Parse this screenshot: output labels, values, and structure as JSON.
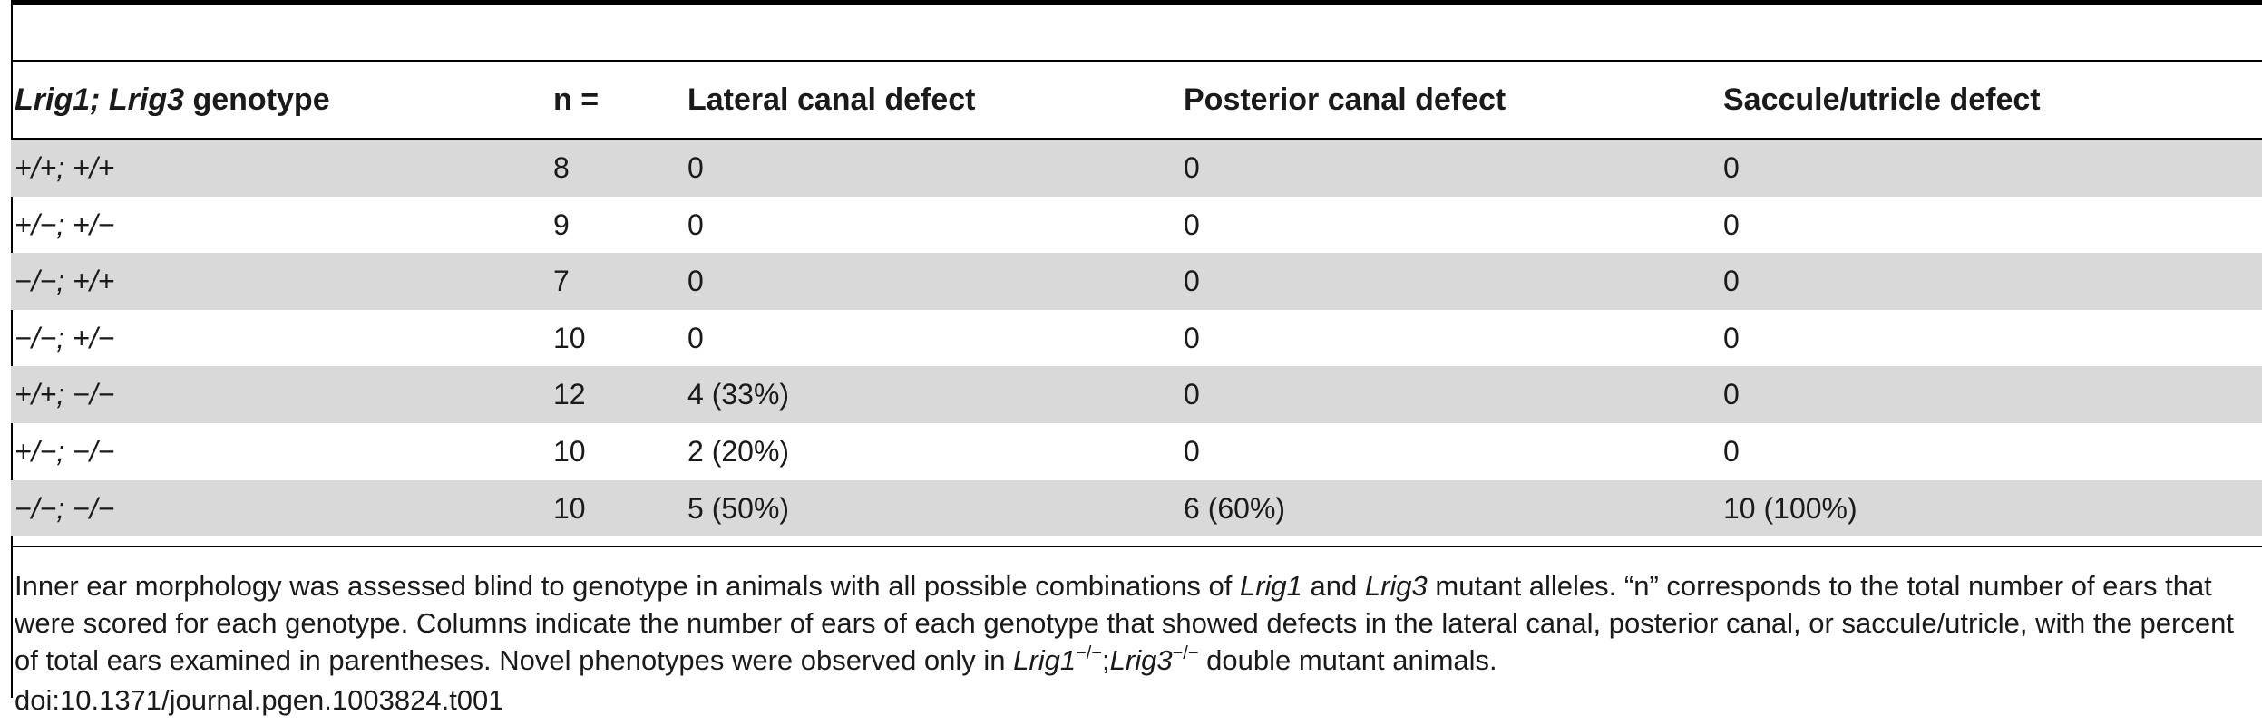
{
  "table": {
    "header": {
      "genotype_gene_a": "Lrig1; Lrig3",
      "genotype_suffix": " genotype",
      "n": "n =",
      "lateral": "Lateral canal defect",
      "posterior": "Posterior canal defect",
      "saccule": "Saccule/utricle defect"
    },
    "rows": [
      {
        "genotype": "+/+; +/+",
        "n": "8",
        "lateral": "0",
        "posterior": "0",
        "saccule": "0"
      },
      {
        "genotype": "+/−; +/−",
        "n": "9",
        "lateral": "0",
        "posterior": "0",
        "saccule": "0"
      },
      {
        "genotype": "−/−; +/+",
        "n": "7",
        "lateral": "0",
        "posterior": "0",
        "saccule": "0"
      },
      {
        "genotype": "−/−; +/−",
        "n": "10",
        "lateral": "0",
        "posterior": "0",
        "saccule": "0"
      },
      {
        "genotype": "+/+; −/−",
        "n": "12",
        "lateral": "4 (33%)",
        "posterior": "0",
        "saccule": "0"
      },
      {
        "genotype": "+/−; −/−",
        "n": "10",
        "lateral": "2 (20%)",
        "posterior": "0",
        "saccule": "0"
      },
      {
        "genotype": "−/−; −/−",
        "n": "10",
        "lateral": "5 (50%)",
        "posterior": "6 (60%)",
        "saccule": "10 (100%)"
      }
    ]
  },
  "footnote": {
    "t1": "Inner ear morphology was assessed blind to genotype in animals with all possible combinations of ",
    "g1": "Lrig1",
    "t2": " and ",
    "g2": "Lrig3",
    "t3": " mutant alleles. “n” corresponds to the total number of ears that were scored for each genotype. Columns indicate the number of ears of each genotype that showed defects in the lateral canal, posterior canal, or saccule/utricle, with the percent of total ears examined in parentheses. Novel phenotypes were observed only in ",
    "g3": "Lrig1",
    "sup1": "−/−",
    "sep": ";",
    "g4": "Lrig3",
    "sup2": "−/−",
    "t4": " double mutant animals."
  },
  "doi": "doi:10.1371/journal.pgen.1003824.t001"
}
